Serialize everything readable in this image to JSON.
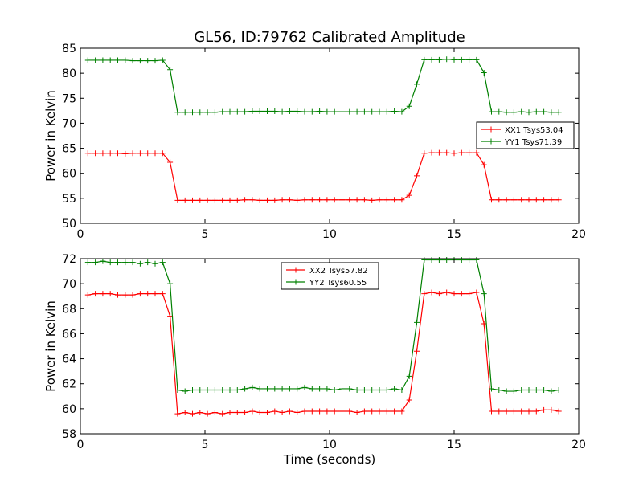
{
  "figure": {
    "title": "GL56, ID:79762 Calibrated Amplitude",
    "xlabel": "Time (seconds)"
  },
  "chart_data": [
    {
      "type": "line",
      "title": "GL56, ID:79762 Calibrated Amplitude",
      "xlabel": "",
      "ylabel": "Power in Kelvin",
      "xlim": [
        0,
        20
      ],
      "ylim": [
        50,
        85
      ],
      "xticks": [
        0,
        5,
        10,
        15,
        20
      ],
      "yticks": [
        50,
        55,
        60,
        65,
        70,
        75,
        80,
        85
      ],
      "grid": false,
      "legend_position": "center-right",
      "x": [
        0.3,
        0.6,
        0.9,
        1.2,
        1.5,
        1.8,
        2.1,
        2.4,
        2.7,
        3.0,
        3.3,
        3.6,
        3.9,
        4.2,
        4.5,
        4.8,
        5.1,
        5.4,
        5.7,
        6.0,
        6.3,
        6.6,
        6.9,
        7.2,
        7.5,
        7.8,
        8.1,
        8.4,
        8.7,
        9.0,
        9.3,
        9.6,
        9.9,
        10.2,
        10.5,
        10.8,
        11.1,
        11.4,
        11.7,
        12.0,
        12.3,
        12.6,
        12.9,
        13.2,
        13.5,
        13.8,
        14.1,
        14.4,
        14.7,
        15.0,
        15.3,
        15.6,
        15.9,
        16.2,
        16.5,
        16.8,
        17.1,
        17.4,
        17.7,
        18.0,
        18.3,
        18.6,
        18.9,
        19.2
      ],
      "series": [
        {
          "name": "XX1 Tsys53.04",
          "color": "#ff0000",
          "values": [
            64.0,
            64.0,
            64.0,
            64.0,
            64.0,
            63.9,
            64.0,
            64.0,
            64.0,
            64.0,
            64.0,
            62.2,
            54.6,
            54.6,
            54.6,
            54.6,
            54.6,
            54.6,
            54.6,
            54.6,
            54.6,
            54.7,
            54.7,
            54.6,
            54.6,
            54.6,
            54.7,
            54.7,
            54.6,
            54.7,
            54.7,
            54.7,
            54.7,
            54.7,
            54.7,
            54.7,
            54.7,
            54.7,
            54.6,
            54.7,
            54.7,
            54.7,
            54.7,
            55.6,
            59.5,
            64.0,
            64.1,
            64.1,
            64.1,
            64.0,
            64.1,
            64.1,
            64.1,
            61.7,
            54.7,
            54.7,
            54.7,
            54.7,
            54.7,
            54.7,
            54.7,
            54.7,
            54.7,
            54.7
          ]
        },
        {
          "name": "YY1 Tsys71.39",
          "color": "#008000",
          "values": [
            82.6,
            82.6,
            82.6,
            82.6,
            82.6,
            82.6,
            82.5,
            82.5,
            82.5,
            82.5,
            82.6,
            80.7,
            72.2,
            72.2,
            72.2,
            72.2,
            72.2,
            72.2,
            72.3,
            72.3,
            72.3,
            72.3,
            72.4,
            72.4,
            72.4,
            72.4,
            72.3,
            72.4,
            72.4,
            72.3,
            72.3,
            72.4,
            72.3,
            72.3,
            72.3,
            72.3,
            72.3,
            72.3,
            72.3,
            72.3,
            72.3,
            72.4,
            72.3,
            73.4,
            77.8,
            82.7,
            82.7,
            82.7,
            82.8,
            82.7,
            82.7,
            82.7,
            82.7,
            80.1,
            72.3,
            72.3,
            72.2,
            72.2,
            72.3,
            72.2,
            72.3,
            72.3,
            72.2,
            72.2
          ]
        }
      ]
    },
    {
      "type": "line",
      "title": "",
      "xlabel": "Time (seconds)",
      "ylabel": "Power in Kelvin",
      "xlim": [
        0,
        20
      ],
      "ylim": [
        58,
        72
      ],
      "xticks": [
        0,
        5,
        10,
        15,
        20
      ],
      "yticks": [
        58,
        60,
        62,
        64,
        66,
        68,
        70,
        72
      ],
      "grid": false,
      "legend_position": "top-center",
      "x": [
        0.3,
        0.6,
        0.9,
        1.2,
        1.5,
        1.8,
        2.1,
        2.4,
        2.7,
        3.0,
        3.3,
        3.6,
        3.9,
        4.2,
        4.5,
        4.8,
        5.1,
        5.4,
        5.7,
        6.0,
        6.3,
        6.6,
        6.9,
        7.2,
        7.5,
        7.8,
        8.1,
        8.4,
        8.7,
        9.0,
        9.3,
        9.6,
        9.9,
        10.2,
        10.5,
        10.8,
        11.1,
        11.4,
        11.7,
        12.0,
        12.3,
        12.6,
        12.9,
        13.2,
        13.5,
        13.8,
        14.1,
        14.4,
        14.7,
        15.0,
        15.3,
        15.6,
        15.9,
        16.2,
        16.5,
        16.8,
        17.1,
        17.4,
        17.7,
        18.0,
        18.3,
        18.6,
        18.9,
        19.2
      ],
      "series": [
        {
          "name": "XX2 Tsys57.82",
          "color": "#ff0000",
          "values": [
            69.1,
            69.2,
            69.2,
            69.2,
            69.1,
            69.1,
            69.1,
            69.2,
            69.2,
            69.2,
            69.2,
            67.4,
            59.6,
            59.7,
            59.6,
            59.7,
            59.6,
            59.7,
            59.6,
            59.7,
            59.7,
            59.7,
            59.8,
            59.7,
            59.7,
            59.8,
            59.7,
            59.8,
            59.7,
            59.8,
            59.8,
            59.8,
            59.8,
            59.8,
            59.8,
            59.8,
            59.7,
            59.8,
            59.8,
            59.8,
            59.8,
            59.8,
            59.8,
            60.7,
            64.6,
            69.2,
            69.3,
            69.2,
            69.3,
            69.2,
            69.2,
            69.2,
            69.3,
            66.8,
            59.8,
            59.8,
            59.8,
            59.8,
            59.8,
            59.8,
            59.8,
            59.9,
            59.9,
            59.8
          ]
        },
        {
          "name": "YY2 Tsys60.55",
          "color": "#008000",
          "values": [
            71.7,
            71.7,
            71.8,
            71.7,
            71.7,
            71.7,
            71.7,
            71.6,
            71.7,
            71.6,
            71.7,
            70.0,
            61.5,
            61.4,
            61.5,
            61.5,
            61.5,
            61.5,
            61.5,
            61.5,
            61.5,
            61.6,
            61.7,
            61.6,
            61.6,
            61.6,
            61.6,
            61.6,
            61.6,
            61.7,
            61.6,
            61.6,
            61.6,
            61.5,
            61.6,
            61.6,
            61.5,
            61.5,
            61.5,
            61.5,
            61.5,
            61.6,
            61.5,
            62.6,
            66.9,
            71.9,
            71.9,
            71.9,
            71.9,
            71.9,
            71.9,
            71.9,
            71.9,
            69.2,
            61.6,
            61.5,
            61.4,
            61.4,
            61.5,
            61.5,
            61.5,
            61.5,
            61.4,
            61.5
          ]
        }
      ]
    }
  ]
}
